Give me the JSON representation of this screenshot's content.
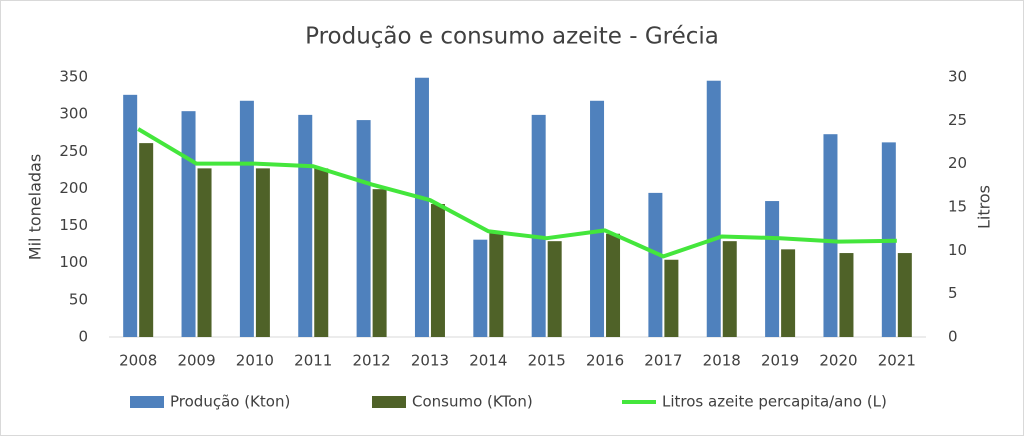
{
  "chart_data": {
    "type": "bar-line",
    "title": "Produção e consumo azeite - Grécia",
    "y_label": "Mil toneladas",
    "y2_label": "Litros",
    "categories": [
      "2008",
      "2009",
      "2010",
      "2011",
      "2012",
      "2013",
      "2014",
      "2015",
      "2016",
      "2017",
      "2018",
      "2019",
      "2020",
      "2021"
    ],
    "series": [
      {
        "name": "Produção (Kton)",
        "type": "bar",
        "color": "#4f81bd",
        "values": [
          326,
          304,
          318,
          299,
          292,
          349,
          131,
          299,
          318,
          194,
          345,
          183,
          273,
          262
        ]
      },
      {
        "name": "Consumo (KTon)",
        "type": "bar",
        "color": "#4f6228",
        "values": [
          261,
          227,
          227,
          227,
          199,
          179,
          140,
          129,
          139,
          104,
          129,
          118,
          113,
          113
        ]
      },
      {
        "name": "Litros azeite percapita/ano (L)",
        "type": "line",
        "axis": "y2",
        "color": "#44e63c",
        "values": [
          24,
          20,
          20,
          19.7,
          17.6,
          15.8,
          12.2,
          11.4,
          12.3,
          9.3,
          11.6,
          11.4,
          11,
          11.1
        ]
      }
    ],
    "ylim": [
      0,
      350
    ],
    "yticks": [
      0,
      50,
      100,
      150,
      200,
      250,
      300,
      350
    ],
    "y2lim": [
      0,
      30
    ],
    "y2ticks": [
      0,
      5,
      10,
      15,
      20,
      25,
      30
    ],
    "legend": "bottom",
    "grid": false
  }
}
